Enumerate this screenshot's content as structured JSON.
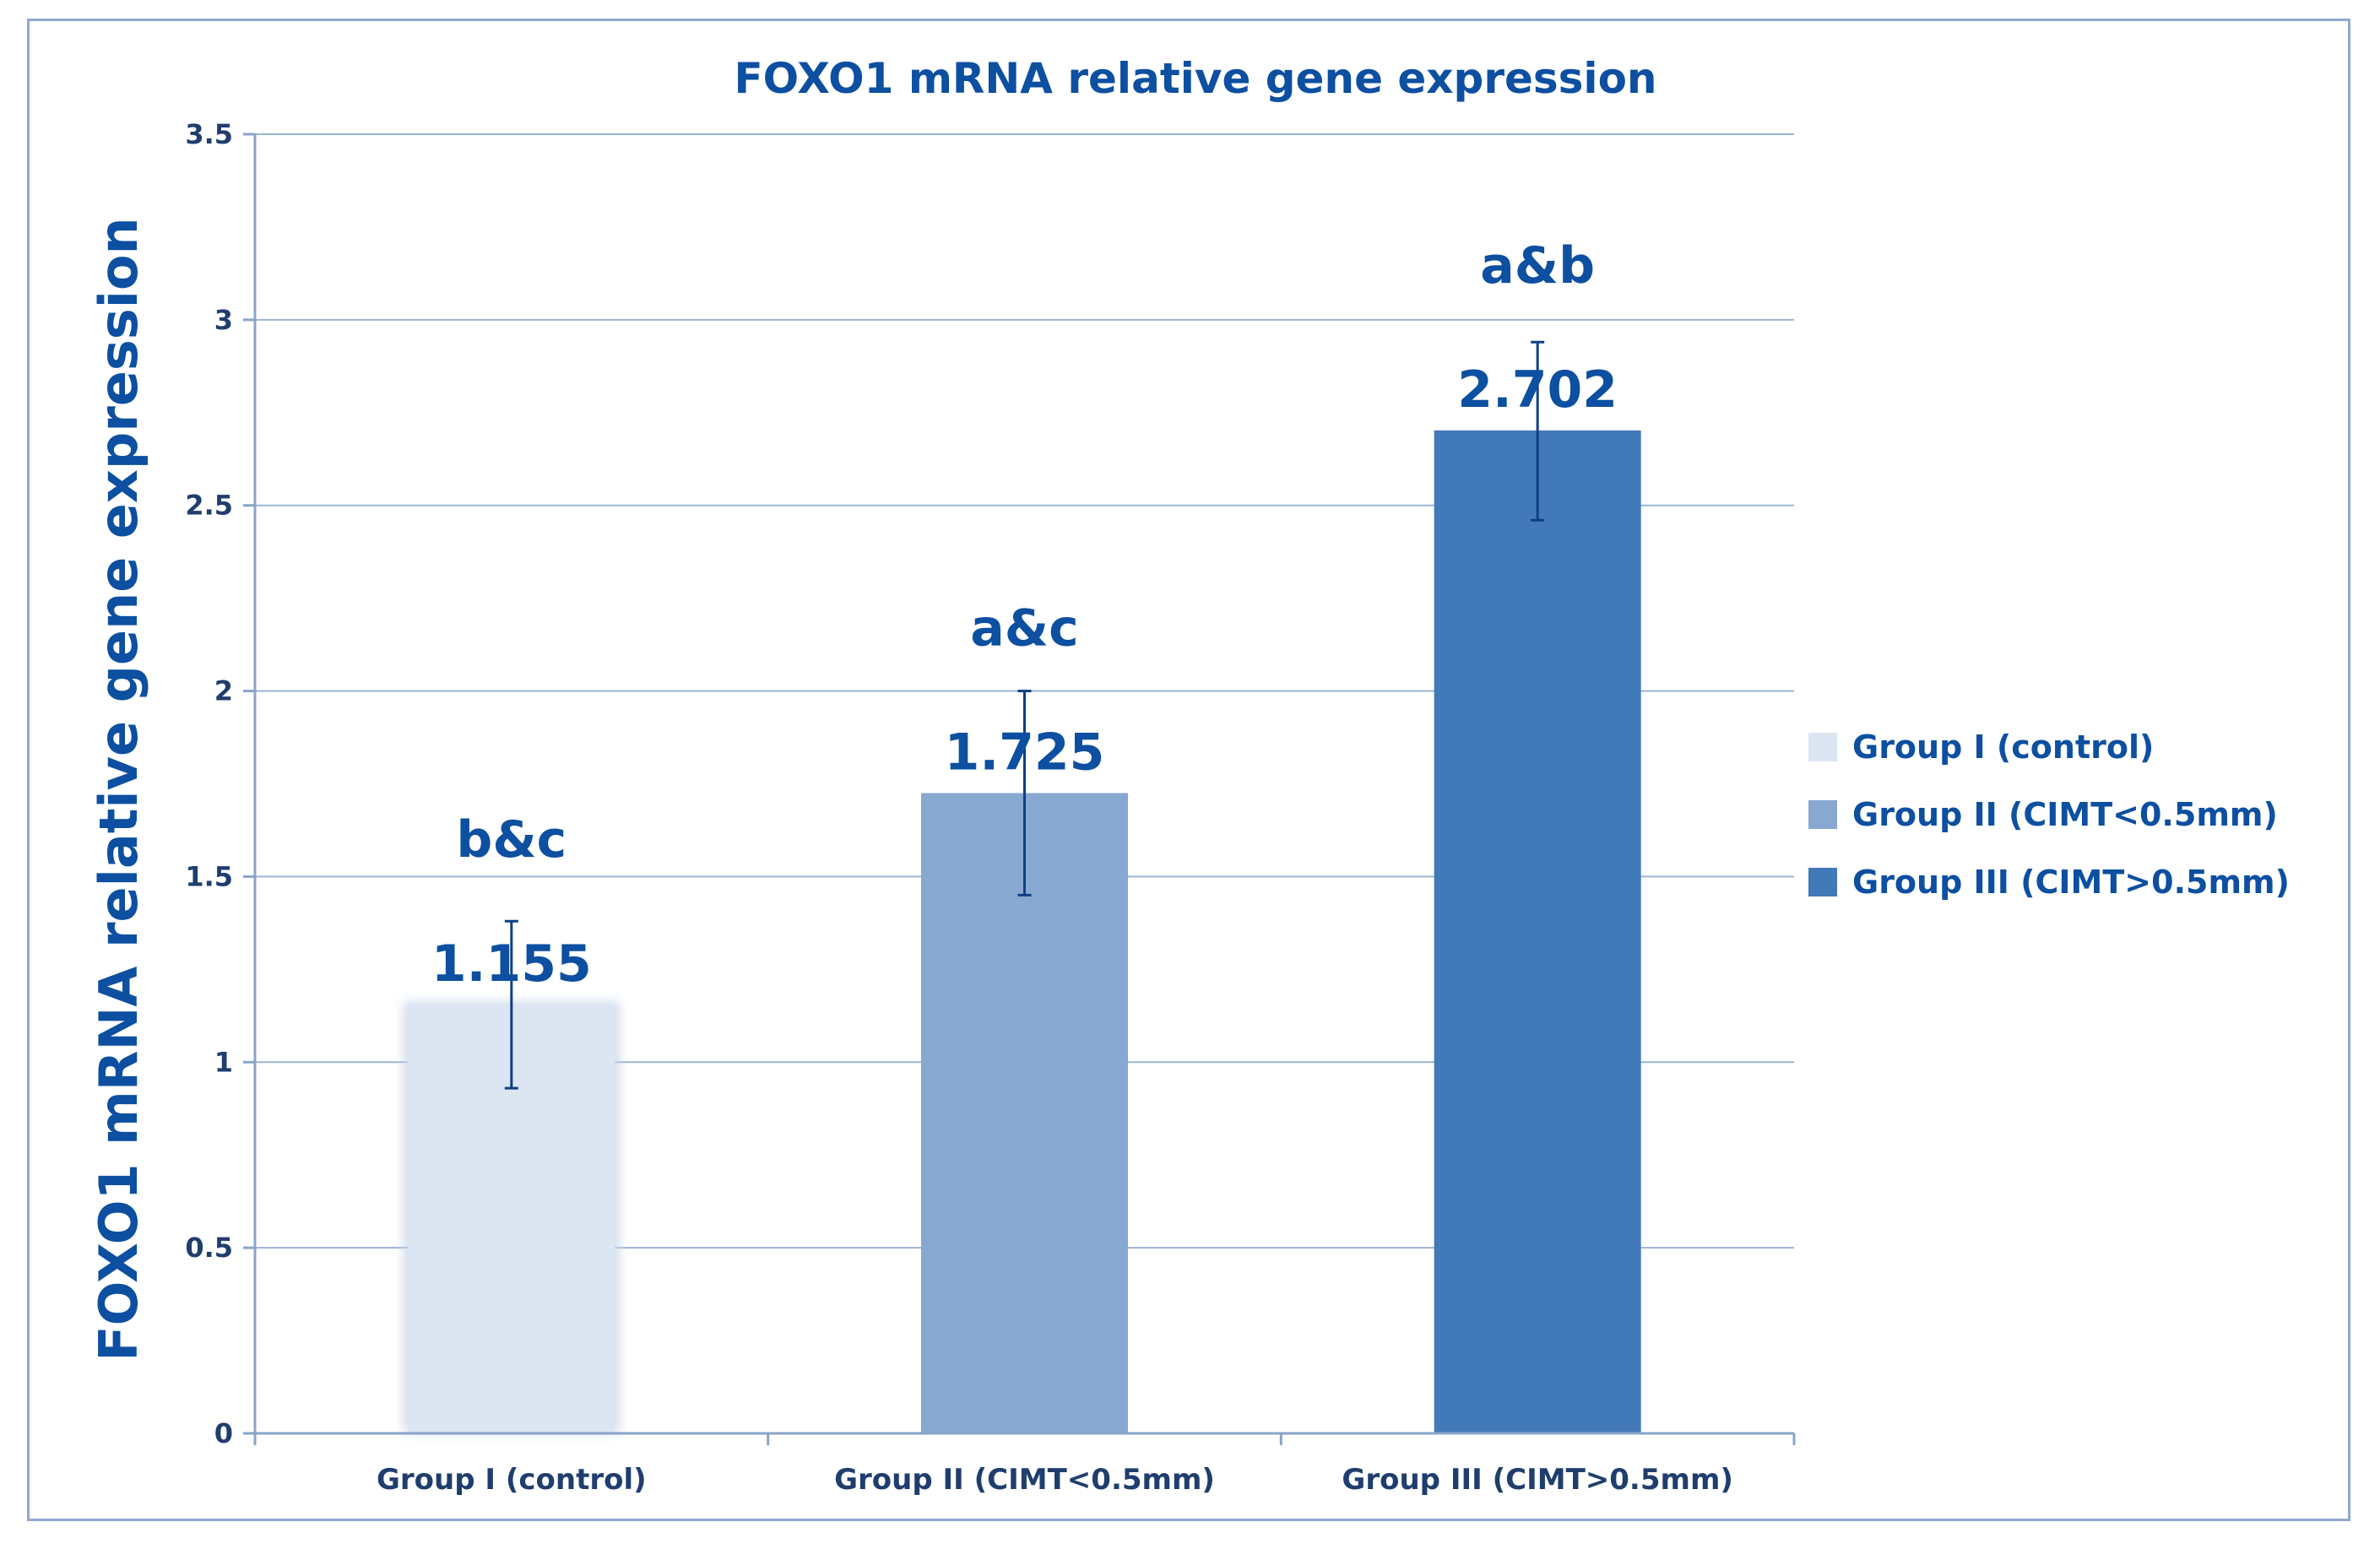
{
  "chart_data": {
    "type": "bar",
    "title": "FOXO1 mRNA relative gene expression",
    "xlabel": "",
    "ylabel": "FOXO1 mRNA relative gene expression",
    "ylim": [
      0,
      3.5
    ],
    "yticks": [
      0,
      0.5,
      1,
      1.5,
      2,
      2.5,
      3,
      3.5
    ],
    "ytick_labels": [
      "0",
      "0.5",
      "1",
      "1.5",
      "2",
      "2.5",
      "3",
      "3.5"
    ],
    "grid": true,
    "legend_position": "right",
    "categories": [
      "Group I (control)",
      "Group II (CIMT<0.5mm)",
      "Group III (CIMT>0.5mm)"
    ],
    "values": [
      1.155,
      1.725,
      2.702
    ],
    "value_labels": [
      "1.155",
      "1.725",
      "2.702"
    ],
    "error_low": [
      0.93,
      1.45,
      2.46
    ],
    "error_high": [
      1.38,
      2.0,
      2.94
    ],
    "significance_labels": [
      "b&c",
      "a&c",
      "a&b"
    ],
    "colors": [
      "#dce6f2",
      "#87a8d0",
      "#4279b8"
    ],
    "legend": [
      "Group I (control)",
      "Group II (CIMT<0.5mm)",
      "Group III (CIMT>0.5mm)"
    ]
  }
}
